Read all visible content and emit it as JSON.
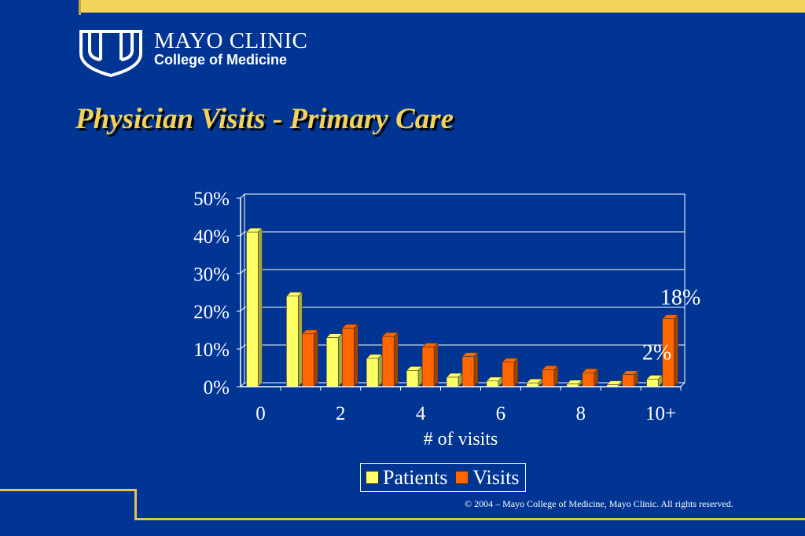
{
  "branding": {
    "name": "MAYO CLINIC",
    "subtitle": "College of Medicine"
  },
  "slide": {
    "title": "Physician Visits - Primary Care"
  },
  "footer": {
    "copyright": "© 2004 – Mayo College of Medicine, Mayo Clinic.  All rights reserved."
  },
  "colors": {
    "background": "#003594",
    "accent": "#F5D25A",
    "patients": "#FFFF66",
    "visits": "#FF6600"
  },
  "chart_data": {
    "type": "bar",
    "view": "3d-clustered-column",
    "title": "",
    "xlabel": "# of visits",
    "ylabel": "",
    "ylim": [
      0,
      50
    ],
    "y_ticks": [
      "0%",
      "10%",
      "20%",
      "30%",
      "40%",
      "50%"
    ],
    "y_tick_values": [
      0,
      10,
      20,
      30,
      40,
      50
    ],
    "categories": [
      "0",
      "1",
      "2",
      "3",
      "4",
      "5",
      "6",
      "7",
      "8",
      "9",
      "10+"
    ],
    "x_tick_labels": [
      "0",
      "2",
      "4",
      "6",
      "8",
      "10+"
    ],
    "x_tick_label_categories": [
      "0",
      "2",
      "4",
      "6",
      "8",
      "10+"
    ],
    "grid": true,
    "legend_position": "bottom",
    "series": [
      {
        "name": "Patients",
        "color": "#FFFF66",
        "values": [
          41,
          24,
          13,
          7.5,
          4.3,
          2.5,
          1.5,
          1,
          0.7,
          0.5,
          2
        ]
      },
      {
        "name": "Visits",
        "color": "#FF6600",
        "values": [
          0,
          14,
          15.5,
          13.3,
          10.5,
          8,
          6.5,
          4.5,
          3.7,
          3.2,
          18
        ]
      }
    ],
    "annotations": [
      {
        "text": "18%",
        "series": "Visits",
        "category": "10+"
      },
      {
        "text": "2%",
        "series": "Patients",
        "category": "10+"
      }
    ]
  }
}
